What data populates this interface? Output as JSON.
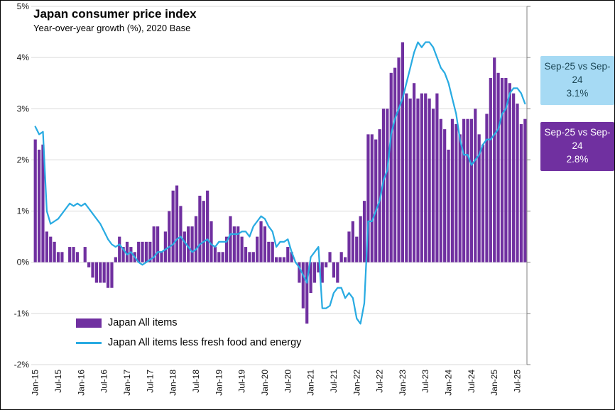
{
  "header": {
    "title": "Japan consumer price index",
    "subtitle": "Year-over-year growth (%), 2020 Base"
  },
  "legend": {
    "bars": "Japan All items",
    "line": "Japan All items less fresh food and energy"
  },
  "annotations": [
    {
      "series": "Japan All items less fresh food and energy",
      "label": "Sep-25 vs Sep-24",
      "value": "3.1%"
    },
    {
      "series": "Japan All items",
      "label": "Sep-25 vs Sep-24",
      "value": "2.8%"
    }
  ],
  "colors": {
    "bar": "#7030A0",
    "line": "#29ABE2",
    "grid": "#D9D9D9",
    "axis": "#808080",
    "annotation_line_bg": "#A6DAF4",
    "annotation_line_text": "#1C4756",
    "annotation_bar_bg": "#7030A0",
    "annotation_bar_text": "#FFFFFF"
  },
  "chart_data": {
    "type": "bar",
    "title": "Japan consumer price index",
    "subtitle": "Year-over-year growth (%), 2020 Base",
    "xlabel": "",
    "ylabel": "Year-over-year growth (%)",
    "ylim": [
      -2,
      5
    ],
    "grid": true,
    "legend_position": "inside-bottom-left",
    "y_ticks": [
      5,
      4,
      3,
      2,
      1,
      0,
      -1,
      -2
    ],
    "y_tick_labels": [
      "5%",
      "4%",
      "3%",
      "2%",
      "1%",
      "0%",
      "-1%",
      "-2%"
    ],
    "x_tick_every": 6,
    "categories": [
      "Jan-15",
      "Feb-15",
      "Mar-15",
      "Apr-15",
      "May-15",
      "Jun-15",
      "Jul-15",
      "Aug-15",
      "Sep-15",
      "Oct-15",
      "Nov-15",
      "Dec-15",
      "Jan-16",
      "Feb-16",
      "Mar-16",
      "Apr-16",
      "May-16",
      "Jun-16",
      "Jul-16",
      "Aug-16",
      "Sep-16",
      "Oct-16",
      "Nov-16",
      "Dec-16",
      "Jan-17",
      "Feb-17",
      "Mar-17",
      "Apr-17",
      "May-17",
      "Jun-17",
      "Jul-17",
      "Aug-17",
      "Sep-17",
      "Oct-17",
      "Nov-17",
      "Dec-17",
      "Jan-18",
      "Feb-18",
      "Mar-18",
      "Apr-18",
      "May-18",
      "Jun-18",
      "Jul-18",
      "Aug-18",
      "Sep-18",
      "Oct-18",
      "Nov-18",
      "Dec-18",
      "Jan-19",
      "Feb-19",
      "Mar-19",
      "Apr-19",
      "May-19",
      "Jun-19",
      "Jul-19",
      "Aug-19",
      "Sep-19",
      "Oct-19",
      "Nov-19",
      "Dec-19",
      "Jan-20",
      "Feb-20",
      "Mar-20",
      "Apr-20",
      "May-20",
      "Jun-20",
      "Jul-20",
      "Aug-20",
      "Sep-20",
      "Oct-20",
      "Nov-20",
      "Dec-20",
      "Jan-21",
      "Feb-21",
      "Mar-21",
      "Apr-21",
      "May-21",
      "Jun-21",
      "Jul-21",
      "Aug-21",
      "Sep-21",
      "Oct-21",
      "Nov-21",
      "Dec-21",
      "Jan-22",
      "Feb-22",
      "Mar-22",
      "Apr-22",
      "May-22",
      "Jun-22",
      "Jul-22",
      "Aug-22",
      "Sep-22",
      "Oct-22",
      "Nov-22",
      "Dec-22",
      "Jan-23",
      "Feb-23",
      "Mar-23",
      "Apr-23",
      "May-23",
      "Jun-23",
      "Jul-23",
      "Aug-23",
      "Sep-23",
      "Oct-23",
      "Nov-23",
      "Dec-23",
      "Jan-24",
      "Feb-24",
      "Mar-24",
      "Apr-24",
      "May-24",
      "Jun-24",
      "Jul-24",
      "Aug-24",
      "Sep-24",
      "Oct-24",
      "Nov-24",
      "Dec-24",
      "Jan-25",
      "Feb-25",
      "Mar-25",
      "Apr-25",
      "May-25",
      "Jun-25",
      "Jul-25",
      "Aug-25",
      "Sep-25"
    ],
    "series": [
      {
        "name": "Japan All items",
        "type": "bar",
        "values": [
          2.4,
          2.2,
          2.3,
          0.6,
          0.5,
          0.4,
          0.2,
          0.2,
          0.0,
          0.3,
          0.3,
          0.2,
          0.0,
          0.3,
          -0.1,
          -0.3,
          -0.4,
          -0.4,
          -0.4,
          -0.5,
          -0.5,
          0.1,
          0.5,
          0.3,
          0.4,
          0.3,
          0.2,
          0.4,
          0.4,
          0.4,
          0.4,
          0.7,
          0.7,
          0.2,
          0.6,
          1.0,
          1.4,
          1.5,
          1.1,
          0.6,
          0.7,
          0.7,
          0.9,
          1.3,
          1.2,
          1.4,
          0.8,
          0.3,
          0.2,
          0.2,
          0.5,
          0.9,
          0.7,
          0.7,
          0.5,
          0.3,
          0.2,
          0.2,
          0.5,
          0.8,
          0.7,
          0.4,
          0.4,
          0.1,
          0.1,
          0.1,
          0.3,
          0.2,
          0.0,
          -0.4,
          -0.9,
          -1.2,
          -0.6,
          -0.4,
          -0.2,
          -0.4,
          -0.1,
          0.2,
          -0.3,
          -0.4,
          0.2,
          0.1,
          0.6,
          0.8,
          0.5,
          0.9,
          1.2,
          2.5,
          2.5,
          2.4,
          2.6,
          3.0,
          3.0,
          3.7,
          3.8,
          4.0,
          4.3,
          3.3,
          3.2,
          3.5,
          3.2,
          3.3,
          3.3,
          3.2,
          3.0,
          3.3,
          2.8,
          2.6,
          2.2,
          2.8,
          2.7,
          2.5,
          2.8,
          2.8,
          2.8,
          3.0,
          2.5,
          2.3,
          2.9,
          3.6,
          4.0,
          3.7,
          3.6,
          3.6,
          3.5,
          3.3,
          3.1,
          2.7,
          2.8
        ]
      },
      {
        "name": "Japan All items less fresh food and energy",
        "type": "line",
        "values": [
          2.65,
          2.5,
          2.55,
          1.0,
          0.75,
          0.8,
          0.85,
          0.95,
          1.05,
          1.15,
          1.1,
          1.15,
          1.1,
          1.15,
          1.05,
          0.95,
          0.85,
          0.75,
          0.6,
          0.45,
          0.35,
          0.3,
          0.35,
          0.25,
          0.15,
          0.2,
          0.1,
          0.0,
          -0.05,
          0.0,
          0.05,
          0.1,
          0.2,
          0.2,
          0.25,
          0.3,
          0.35,
          0.45,
          0.5,
          0.4,
          0.3,
          0.2,
          0.25,
          0.35,
          0.4,
          0.45,
          0.35,
          0.3,
          0.4,
          0.4,
          0.4,
          0.55,
          0.55,
          0.55,
          0.6,
          0.6,
          0.5,
          0.7,
          0.8,
          0.9,
          0.85,
          0.7,
          0.6,
          0.3,
          0.4,
          0.4,
          0.45,
          0.2,
          0.0,
          -0.1,
          -0.25,
          -0.4,
          0.1,
          0.2,
          0.3,
          -0.9,
          -0.9,
          -0.85,
          -0.6,
          -0.5,
          -0.5,
          -0.7,
          -0.6,
          -0.7,
          -1.1,
          -1.2,
          -0.8,
          0.8,
          0.8,
          1.0,
          1.2,
          1.6,
          1.8,
          2.5,
          2.8,
          3.0,
          3.2,
          3.5,
          3.8,
          4.1,
          4.3,
          4.2,
          4.3,
          4.3,
          4.2,
          4.0,
          3.8,
          3.7,
          3.5,
          3.2,
          2.9,
          2.4,
          2.1,
          2.1,
          1.9,
          2.0,
          2.1,
          2.3,
          2.4,
          2.4,
          2.5,
          2.6,
          2.9,
          3.0,
          3.3,
          3.4,
          3.4,
          3.3,
          3.1
        ]
      }
    ]
  }
}
